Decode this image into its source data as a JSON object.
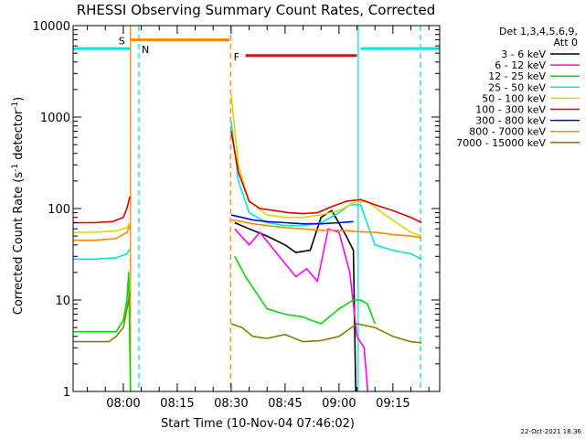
{
  "chart_data": {
    "type": "line",
    "title": "RHESSI Observing Summary Count Rates, Corrected",
    "xlabel": "Start Time (10-Nov-04 07:46:02)",
    "ylabel": "Corrected Count Rate (s",
    "ylabel_sup1": "-1",
    "ylabel_mid": " detector",
    "ylabel_sup2": "-1",
    "ylabel_end": ")",
    "y_scale": "log",
    "ylim": [
      1,
      10000
    ],
    "xlim": [
      "07:46:02",
      "09:28:00"
    ],
    "x_ticks": [
      "08:00",
      "08:15",
      "08:30",
      "08:45",
      "09:00",
      "09:15"
    ],
    "y_ticks": [
      "1",
      "10",
      "100",
      "1000",
      "10000"
    ],
    "timestamp": "22-Oct-2021 18:36",
    "legend": {
      "placement": "top-right",
      "header1": "Det 1,3,4,5,6,9,",
      "header2": "Att 0",
      "entries": [
        {
          "label": "3 - 6 keV",
          "color": "#000000"
        },
        {
          "label": "6 - 12 keV",
          "color": "#ff00ff"
        },
        {
          "label": "12 - 25 keV",
          "color": "#00dd00"
        },
        {
          "label": "25 - 50 keV",
          "color": "#00e5e5"
        },
        {
          "label": "50 - 100 keV",
          "color": "#d8d800"
        },
        {
          "label": "100 - 300 keV",
          "color": "#dd0000"
        },
        {
          "label": "300 - 800 keV",
          "color": "#0000dd"
        },
        {
          "label": "800 - 7000 keV",
          "color": "#ff8800"
        },
        {
          "label": "7000 - 15000 keV",
          "color": "#808000"
        }
      ]
    },
    "flags": [
      {
        "label": "S",
        "color": "#ff8800",
        "start": "08:02:00",
        "end": "08:29:30",
        "value": 7000
      },
      {
        "label": "N",
        "color": "#00e5e5",
        "start": "07:46:02",
        "end": "08:02:00",
        "value": 5600
      },
      {
        "label": "N",
        "color": "#00e5e5",
        "start": "09:06:00",
        "end": "09:28:00",
        "value": 5600
      },
      {
        "label": "F",
        "color": "#ff0000",
        "start": "08:34:00",
        "end": "09:05:00",
        "value": 4700
      }
    ],
    "vlines": [
      {
        "time": "08:02:00",
        "color": "#ff8800",
        "style": "solid"
      },
      {
        "time": "08:04:20",
        "color": "#00e5e5",
        "style": "dashed"
      },
      {
        "time": "08:29:50",
        "color": "#ff8800",
        "style": "dashed"
      },
      {
        "time": "09:05:20",
        "color": "#00e5e5",
        "style": "solid"
      },
      {
        "time": "09:22:40",
        "color": "#00e5e5",
        "style": "dashed"
      }
    ],
    "series": [
      {
        "name": "3 - 6 keV",
        "color": "#000000",
        "segments": [
          {
            "x": [
              "08:31:00",
              "08:35:00",
              "08:40:00",
              "08:45:00",
              "08:48:00",
              "08:52:00",
              "08:55:00",
              "08:58:00",
              "09:02:00",
              "09:04:00",
              "09:04:40"
            ],
            "y": [
              70,
              60,
              50,
              40,
              33,
              35,
              80,
              95,
              50,
              35,
              1
            ]
          }
        ]
      },
      {
        "name": "6 - 12 keV",
        "color": "#ff00ff",
        "segments": [
          {
            "x": [
              "08:31:00",
              "08:35:00",
              "08:38:00",
              "08:42:00",
              "08:45:00",
              "08:48:00",
              "08:51:00",
              "08:54:00",
              "08:57:00",
              "09:00:00",
              "09:03:00",
              "09:05:00",
              "09:07:00",
              "09:08:00"
            ],
            "y": [
              60,
              40,
              55,
              35,
              25,
              18,
              22,
              16,
              60,
              55,
              20,
              4,
              3,
              1
            ]
          }
        ]
      },
      {
        "name": "12 - 25 keV",
        "color": "#00dd00",
        "segments": [
          {
            "x": [
              "07:46:02",
              "07:55:00",
              "07:58:00",
              "08:00:00",
              "08:01:00",
              "08:01:30",
              "08:02:00"
            ],
            "y": [
              4.5,
              4.5,
              4.5,
              6,
              10,
              20,
              1
            ]
          },
          {
            "x": [
              "08:31:00",
              "08:34:00",
              "08:37:00",
              "08:40:00",
              "08:45:00",
              "08:50:00",
              "08:55:00",
              "09:00:00",
              "09:04:00",
              "09:06:00",
              "09:08:00",
              "09:10:00"
            ],
            "y": [
              30,
              18,
              12,
              8,
              7,
              6.5,
              5.5,
              8,
              10,
              10,
              9,
              5.5
            ]
          }
        ]
      },
      {
        "name": "25 - 50 keV",
        "color": "#00e5e5",
        "segments": [
          {
            "x": [
              "07:46:02",
              "07:52:00",
              "07:58:00",
              "08:01:00",
              "08:01:50"
            ],
            "y": [
              28,
              28,
              29,
              32,
              36
            ]
          },
          {
            "x": [
              "08:30:00",
              "08:32:00",
              "08:35:00",
              "08:40:00",
              "08:45:00",
              "08:50:00",
              "08:55:00",
              "09:00:00",
              "09:03:00",
              "09:06:00",
              "09:10:00",
              "09:15:00",
              "09:20:00",
              "09:23:00"
            ],
            "y": [
              900,
              200,
              90,
              70,
              65,
              65,
              70,
              90,
              110,
              110,
              40,
              35,
              32,
              28
            ]
          }
        ]
      },
      {
        "name": "50 - 100 keV",
        "color": "#d8d800",
        "segments": [
          {
            "x": [
              "07:46:02",
              "07:52:00",
              "07:58:00",
              "08:01:00",
              "08:01:50"
            ],
            "y": [
              55,
              55,
              57,
              62,
              70
            ]
          },
          {
            "x": [
              "08:30:00",
              "08:32:00",
              "08:35:00",
              "08:40:00",
              "08:45:00",
              "08:50:00",
              "08:55:00",
              "09:00:00",
              "09:04:00",
              "09:08:00",
              "09:12:00",
              "09:16:00",
              "09:20:00",
              "09:23:00"
            ],
            "y": [
              1800,
              300,
              120,
              85,
              80,
              80,
              85,
              95,
              115,
              120,
              90,
              70,
              55,
              50
            ]
          }
        ]
      },
      {
        "name": "100 - 300 keV",
        "color": "#dd0000",
        "segments": [
          {
            "x": [
              "07:46:02",
              "07:52:00",
              "07:57:00",
              "08:00:00",
              "08:01:00",
              "08:01:50"
            ],
            "y": [
              70,
              70,
              72,
              80,
              100,
              135
            ]
          },
          {
            "x": [
              "08:30:00",
              "08:32:00",
              "08:35:00",
              "08:38:00",
              "08:42:00",
              "08:46:00",
              "08:50:00",
              "08:54:00",
              "08:58:00",
              "09:02:00",
              "09:06:00",
              "09:10:00",
              "09:15:00",
              "09:20:00",
              "09:23:00"
            ],
            "y": [
              700,
              250,
              120,
              100,
              95,
              90,
              88,
              90,
              105,
              120,
              125,
              110,
              95,
              80,
              70
            ]
          }
        ]
      },
      {
        "name": "300 - 800 keV",
        "color": "#0000dd",
        "segments": [
          {
            "x": [
              "08:30:00",
              "08:33:00",
              "08:36:00",
              "08:40:00",
              "08:45:00",
              "08:50:00",
              "08:55:00",
              "09:00:00",
              "09:04:00"
            ],
            "y": [
              85,
              80,
              75,
              72,
              70,
              68,
              68,
              70,
              72
            ]
          }
        ]
      },
      {
        "name": "800 - 7000 keV",
        "color": "#ff8800",
        "segments": [
          {
            "x": [
              "07:46:02",
              "07:52:00",
              "07:58:00",
              "08:01:00",
              "08:01:50"
            ],
            "y": [
              45,
              45,
              47,
              55,
              65
            ]
          },
          {
            "x": [
              "08:30:00",
              "08:33:00",
              "08:36:00",
              "08:40:00",
              "08:45:00",
              "08:50:00",
              "08:55:00",
              "09:00:00",
              "09:05:00",
              "09:10:00",
              "09:15:00",
              "09:20:00",
              "09:23:00"
            ],
            "y": [
              75,
              72,
              68,
              65,
              62,
              60,
              58,
              58,
              56,
              55,
              52,
              50,
              48
            ]
          }
        ]
      },
      {
        "name": "7000 - 15000 keV",
        "color": "#808000",
        "segments": [
          {
            "x": [
              "07:46:02",
              "07:52:00",
              "07:56:00",
              "07:58:00",
              "08:00:00",
              "08:01:00",
              "08:01:50"
            ],
            "y": [
              3.5,
              3.5,
              3.5,
              4,
              5,
              8,
              12
            ]
          },
          {
            "x": [
              "08:30:00",
              "08:33:00",
              "08:36:00",
              "08:40:00",
              "08:45:00",
              "08:50:00",
              "08:55:00",
              "09:00:00",
              "09:05:00",
              "09:10:00",
              "09:15:00",
              "09:20:00",
              "09:23:00"
            ],
            "y": [
              5.5,
              5.0,
              4.0,
              3.8,
              4.2,
              3.5,
              3.6,
              4.0,
              5.5,
              5.0,
              4.0,
              3.5,
              3.4
            ]
          }
        ]
      }
    ]
  }
}
